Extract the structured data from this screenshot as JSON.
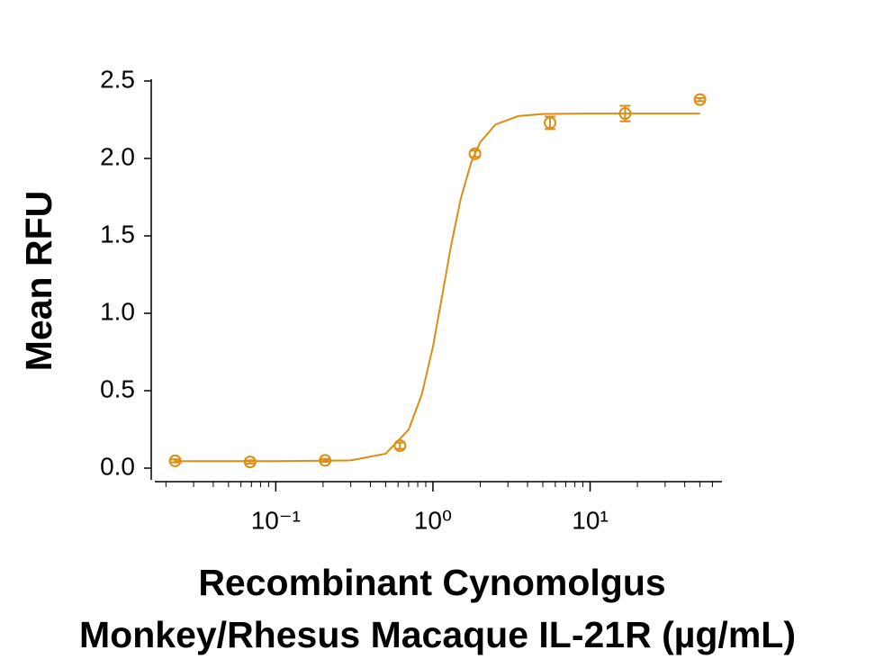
{
  "chart_data": {
    "type": "scatter",
    "ylabel": "Mean RFU",
    "xlabel": [
      "Recombinant Cynomolgus",
      "Monkey/Rhesus Macaque IL-21R (µg/mL)"
    ],
    "color": "#dd8c14",
    "log_x": true,
    "xlim": [
      0.017,
      69
    ],
    "ylim": [
      0,
      2.5
    ],
    "yticks": [
      {
        "value": 0,
        "label": "0.0"
      },
      0.5,
      {
        "value": 1,
        "label": "1.0"
      },
      1.5,
      {
        "value": 2,
        "label": "2.0"
      },
      2.5
    ],
    "xticks": [
      {
        "value": 0.1,
        "label": "10⁻¹"
      },
      {
        "value": 1,
        "label": "10⁰"
      },
      {
        "value": 10,
        "label": "10¹"
      }
    ],
    "xminor_ticks": [
      0.02,
      0.03,
      0.04,
      0.05,
      0.06,
      0.07,
      0.08,
      0.09,
      0.2,
      0.3,
      0.4,
      0.5,
      0.6,
      0.7,
      0.8,
      0.9,
      2,
      3,
      4,
      5,
      6,
      7,
      8,
      9,
      20,
      30,
      40,
      50,
      60
    ],
    "series": [
      {
        "x": [
          0.0229,
          0.0686,
          0.206,
          0.617,
          1.85,
          5.56,
          16.7,
          50
        ],
        "values": [
          0.047,
          0.04,
          0.05,
          0.145,
          2.03,
          2.23,
          2.29,
          2.38
        ],
        "errors": [
          0.01,
          0.01,
          0.01,
          0.02,
          0.02,
          0.04,
          0.05,
          0.01
        ]
      }
    ],
    "fit": {
      "x": [
        0.0229,
        0.1,
        0.3,
        0.5,
        0.7,
        0.85,
        1.0,
        1.15,
        1.3,
        1.5,
        1.75,
        2.0,
        2.5,
        3.5,
        5,
        10,
        50
      ],
      "values": [
        0.045,
        0.045,
        0.05,
        0.093,
        0.248,
        0.476,
        0.786,
        1.124,
        1.429,
        1.737,
        1.975,
        2.105,
        2.219,
        2.274,
        2.287,
        2.29,
        2.29
      ]
    }
  }
}
